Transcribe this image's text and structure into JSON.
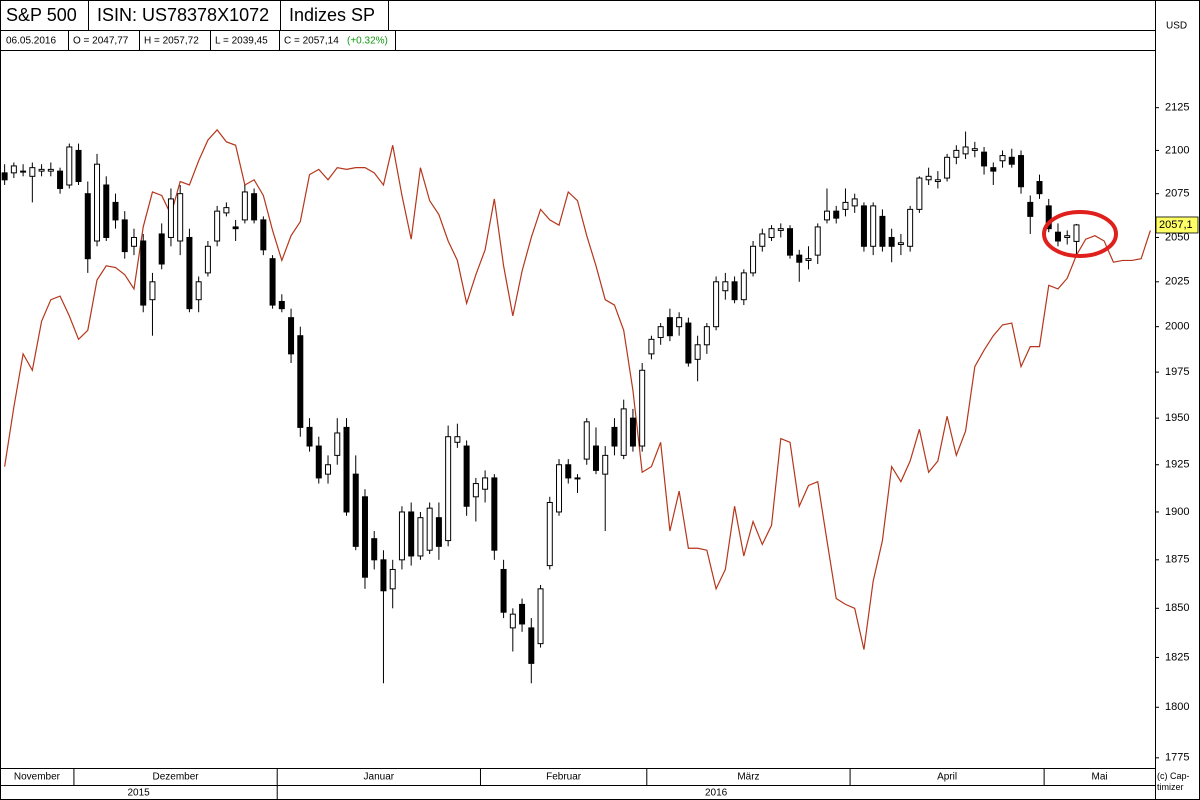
{
  "header": {
    "title": "S&P 500",
    "isin": "ISIN: US78378X1072",
    "index": "Indizes SP",
    "date": "06.05.2016",
    "open": "O = 2047,77",
    "high": "H = 2057,72",
    "low": "L = 2039,45",
    "close": "C = 2057,14",
    "change": "(+0.32%)",
    "currency": "USD",
    "copyright": "(c) Cap-timizer"
  },
  "chart_data": {
    "type": "candlestick",
    "log_scale": true,
    "ylim": [
      1770,
      2158
    ],
    "yticks": [
      1775,
      1800,
      1825,
      1850,
      1875,
      1900,
      1925,
      1950,
      1975,
      2000,
      2025,
      2050,
      2075,
      2100,
      2125
    ],
    "up_color": "#ffffff",
    "down_color": "#000000",
    "categories": [
      "November",
      null,
      null,
      null,
      null,
      null,
      null,
      null,
      "Dezember",
      null,
      null,
      null,
      null,
      null,
      null,
      null,
      null,
      null,
      null,
      null,
      null,
      null,
      null,
      null,
      null,
      null,
      null,
      null,
      null,
      null,
      "Januar",
      null,
      null,
      null,
      null,
      null,
      null,
      null,
      null,
      null,
      null,
      null,
      null,
      null,
      null,
      null,
      null,
      null,
      null,
      null,
      null,
      null,
      "Februar",
      null,
      null,
      null,
      null,
      null,
      null,
      null,
      null,
      null,
      null,
      null,
      null,
      null,
      null,
      null,
      null,
      null,
      "März",
      null,
      null,
      null,
      null,
      null,
      null,
      null,
      null,
      null,
      null,
      null,
      null,
      null,
      null,
      null,
      null,
      null,
      null,
      null,
      null,
      null,
      "April",
      null,
      null,
      null,
      null,
      null,
      null,
      null,
      null,
      null,
      null,
      null,
      null,
      null,
      null,
      null,
      null,
      null,
      null,
      null,
      null,
      "Mai",
      null,
      null,
      null,
      null,
      null,
      null,
      null,
      null,
      null,
      null,
      null
    ],
    "years": [
      {
        "label": "2015",
        "from": 0
      },
      {
        "label": "2016",
        "from": 30
      }
    ],
    "open": [
      2087,
      2087,
      2088,
      2085,
      2088,
      2088,
      2088,
      2080,
      2100,
      2075,
      2048,
      2080,
      2070,
      2060,
      2045,
      2048,
      2015,
      2052,
      2050,
      2048,
      2050,
      2015,
      2030,
      2048,
      2064,
      2056,
      2060,
      2075,
      2060,
      2038,
      2014,
      2005,
      1995,
      1945,
      1935,
      1920,
      1930,
      1945,
      1920,
      1908,
      1886,
      1875,
      1860,
      1875,
      1900,
      1877,
      1880,
      1897,
      1885,
      1937,
      1935,
      1908,
      1912,
      1918,
      1870,
      1840,
      1852,
      1840,
      1832,
      1872,
      1900,
      1925,
      1918,
      1928,
      1935,
      1920,
      1945,
      1930,
      1950,
      1935,
      1985,
      1994,
      2005,
      2000,
      2002,
      1982,
      1990,
      2000,
      2020,
      2025,
      2015,
      2030,
      2045,
      2050,
      2054,
      2055,
      2040,
      2037,
      2040,
      2060,
      2065,
      2066,
      2068,
      2068,
      2045,
      2062,
      2050,
      2046,
      2045,
      2066,
      2083,
      2082,
      2084,
      2096,
      2098,
      2100,
      2099,
      2090,
      2094,
      2096,
      2097,
      2070,
      2082,
      2068,
      2053,
      2050,
      2047.77,
      null,
      null,
      null,
      null,
      null,
      null,
      null,
      null
    ],
    "high": [
      2092,
      2093,
      2092,
      2093,
      2092,
      2093,
      2090,
      2104,
      2104,
      2082,
      2098,
      2085,
      2075,
      2065,
      2055,
      2052,
      2030,
      2058,
      2078,
      2080,
      2055,
      2028,
      2048,
      2068,
      2070,
      2060,
      2080,
      2078,
      2062,
      2040,
      2018,
      2010,
      2000,
      1950,
      1940,
      1930,
      1950,
      1950,
      1930,
      1912,
      1890,
      1880,
      1875,
      1903,
      1905,
      1900,
      1905,
      1905,
      1946,
      1947,
      1938,
      1918,
      1922,
      1920,
      1875,
      1850,
      1855,
      1845,
      1862,
      1908,
      1928,
      1928,
      1920,
      1950,
      1945,
      1935,
      1950,
      1960,
      1955,
      1980,
      1995,
      2002,
      2010,
      2008,
      2005,
      1995,
      2002,
      2028,
      2030,
      2028,
      2032,
      2048,
      2055,
      2057,
      2058,
      2057,
      2043,
      2045,
      2058,
      2078,
      2068,
      2078,
      2075,
      2070,
      2070,
      2066,
      2055,
      2052,
      2068,
      2085,
      2090,
      2088,
      2098,
      2103,
      2111,
      2105,
      2102,
      2093,
      2100,
      2101,
      2100,
      2074,
      2086,
      2072,
      2058,
      2054,
      2057.72,
      null,
      null,
      null,
      null,
      null,
      null,
      null,
      null
    ],
    "low": [
      2080,
      2084,
      2085,
      2070,
      2085,
      2085,
      2075,
      2078,
      2080,
      2030,
      2045,
      2048,
      2055,
      2038,
      2040,
      2008,
      1995,
      2032,
      2045,
      2040,
      2008,
      2008,
      2028,
      2045,
      2062,
      2048,
      2058,
      2058,
      2040,
      2010,
      2008,
      1980,
      1940,
      1932,
      1915,
      1915,
      1925,
      1898,
      1880,
      1860,
      1870,
      1812,
      1850,
      1870,
      1872,
      1875,
      1878,
      1875,
      1882,
      1934,
      1898,
      1895,
      1905,
      1875,
      1845,
      1828,
      1838,
      1812,
      1830,
      1870,
      1898,
      1915,
      1910,
      1925,
      1920,
      1890,
      1930,
      1928,
      1932,
      1932,
      1982,
      1990,
      1992,
      1995,
      1978,
      1970,
      1985,
      1998,
      2015,
      2013,
      2012,
      2028,
      2042,
      2048,
      2050,
      2038,
      2025,
      2032,
      2035,
      2058,
      2058,
      2062,
      2064,
      2042,
      2040,
      2042,
      2036,
      2040,
      2042,
      2064,
      2080,
      2078,
      2082,
      2092,
      2095,
      2096,
      2086,
      2080,
      2090,
      2090,
      2075,
      2052,
      2072,
      2053,
      2045,
      2046,
      2039.45,
      null,
      null,
      null,
      null,
      null,
      null,
      null,
      null
    ],
    "close": [
      2083,
      2091,
      2088,
      2090,
      2089,
      2089,
      2078,
      2102,
      2082,
      2038,
      2092,
      2050,
      2060,
      2042,
      2050,
      2012,
      2025,
      2035,
      2072,
      2075,
      2010,
      2025,
      2045,
      2065,
      2067,
      2055,
      2076,
      2060,
      2043,
      2012,
      2010,
      1985,
      1945,
      1935,
      1918,
      1925,
      1942,
      1900,
      1882,
      1866,
      1875,
      1859,
      1870,
      1900,
      1877,
      1897,
      1902,
      1882,
      1940,
      1940,
      1903,
      1915,
      1918,
      1880,
      1848,
      1847,
      1842,
      1822,
      1860,
      1905,
      1925,
      1918,
      1918,
      1948,
      1922,
      1930,
      1935,
      1955,
      1935,
      1976,
      1993,
      2000,
      1995,
      2005,
      1980,
      1990,
      2000,
      2025,
      2025,
      2015,
      2030,
      2045,
      2052,
      2055,
      2055,
      2040,
      2036,
      2038,
      2056,
      2065,
      2061,
      2070,
      2072,
      2045,
      2068,
      2045,
      2045,
      2047,
      2066,
      2084,
      2085,
      2083,
      2096,
      2100,
      2102,
      2101,
      2091,
      2088,
      2097,
      2092,
      2079,
      2062,
      2075,
      2055,
      2048,
      2051,
      2057.14,
      null,
      null,
      null,
      null,
      null,
      null,
      null,
      null
    ],
    "overlay": {
      "color": "#b5361b",
      "values": [
        1924,
        1956,
        1985,
        1976,
        2003,
        2015,
        2017,
        2006,
        1993,
        1998,
        2026,
        2034,
        2033,
        2029,
        2021,
        2056,
        2076,
        2074,
        2063,
        2082,
        2080,
        2094,
        2106,
        2112,
        2105,
        2103,
        2080,
        2083,
        2074,
        2054,
        2037,
        2051,
        2059,
        2086,
        2089,
        2083,
        2090,
        2089,
        2090,
        2090,
        2087,
        2080,
        2103,
        2074,
        2049,
        2090,
        2071,
        2063,
        2048,
        2037,
        2013,
        2029,
        2043,
        2072,
        2034,
        2006,
        2031,
        2050,
        2066,
        2060,
        2057,
        2076,
        2071,
        2051,
        2034,
        2015,
        2012,
        1998,
        1965,
        1921,
        1924,
        1937,
        1890,
        1911,
        1881,
        1881,
        1880,
        1860,
        1870,
        1903,
        1877,
        1895,
        1883,
        1893,
        1939,
        1937,
        1903,
        1914,
        1916,
        1885,
        1855,
        1852,
        1850,
        1829,
        1864,
        1885,
        1924,
        1916,
        1927,
        1944,
        1921,
        1927,
        1951,
        1930,
        1943,
        1978,
        1987,
        1995,
        2001,
        2002,
        1978,
        1989,
        1989,
        2023,
        2021,
        2027,
        2040,
        2049,
        2051,
        2048,
        2036,
        2037,
        2037,
        2038,
        2054
      ]
    },
    "last_price": {
      "value": 2057.1,
      "label": "2057,1"
    }
  }
}
